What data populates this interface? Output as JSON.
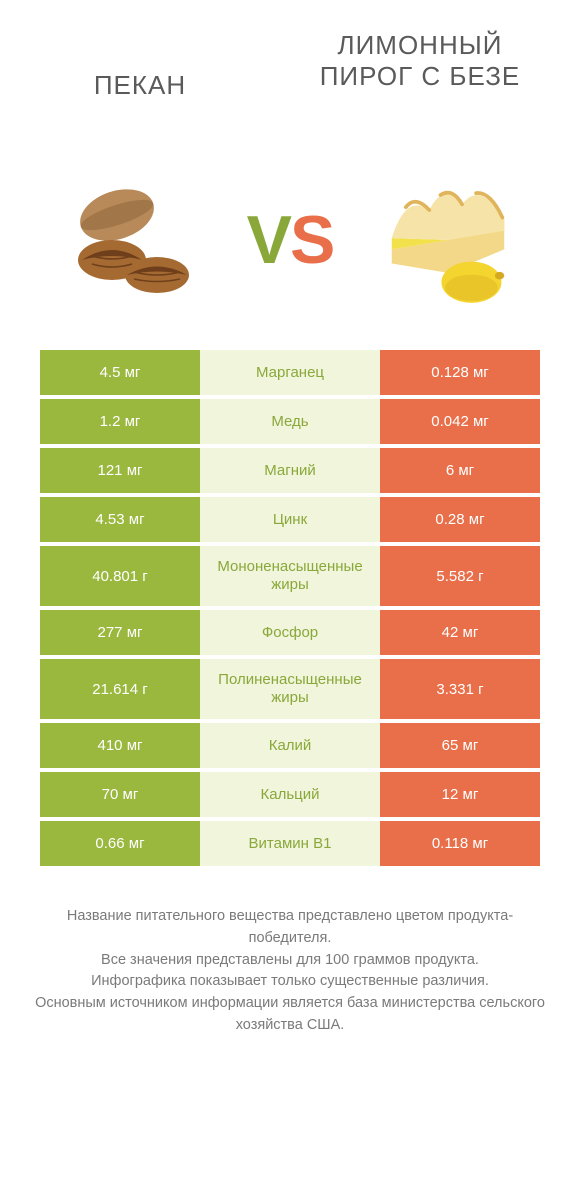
{
  "header": {
    "left_title": "ПЕКАН",
    "right_title": "ЛИМОННЫЙ ПИРОГ С БЕЗЕ"
  },
  "vs": {
    "v": "V",
    "s": "S"
  },
  "colors": {
    "left_bar": "#9ab73e",
    "right_bar": "#e86f4a",
    "mid_bg_winner_left": "#f0f5dc",
    "mid_bg_winner_right": "#fdeae4",
    "mid_text_left": "#8aa83a",
    "mid_text_right": "#e86f4a",
    "footer_text": "#7a7a7a",
    "title_text": "#5a5a5a"
  },
  "comparison": {
    "columns": [
      "left_value",
      "nutrient",
      "right_value"
    ],
    "rows": [
      {
        "left": "4.5 мг",
        "mid": "Марганец",
        "right": "0.128 мг",
        "winner": "left"
      },
      {
        "left": "1.2 мг",
        "mid": "Медь",
        "right": "0.042 мг",
        "winner": "left"
      },
      {
        "left": "121 мг",
        "mid": "Магний",
        "right": "6 мг",
        "winner": "left"
      },
      {
        "left": "4.53 мг",
        "mid": "Цинк",
        "right": "0.28 мг",
        "winner": "left"
      },
      {
        "left": "40.801 г",
        "mid": "Мононенасыщенные жиры",
        "right": "5.582 г",
        "winner": "left"
      },
      {
        "left": "277 мг",
        "mid": "Фосфор",
        "right": "42 мг",
        "winner": "left"
      },
      {
        "left": "21.614 г",
        "mid": "Полиненасыщенные жиры",
        "right": "3.331 г",
        "winner": "left"
      },
      {
        "left": "410 мг",
        "mid": "Калий",
        "right": "65 мг",
        "winner": "left"
      },
      {
        "left": "70 мг",
        "mid": "Кальций",
        "right": "12 мг",
        "winner": "left"
      },
      {
        "left": "0.66 мг",
        "mid": "Витамин B1",
        "right": "0.118 мг",
        "winner": "left"
      }
    ]
  },
  "footer": {
    "line1": "Название питательного вещества представлено цветом продукта-победителя.",
    "line2": "Все значения представлены для 100 граммов продукта.",
    "line3": "Инфографика показывает только существенные различия.",
    "line4": "Основным источником информации является база министерства сельского хозяйства США."
  },
  "images": {
    "pecan": {
      "shell_fill": "#b88a5a",
      "shell_shade": "#8a6238",
      "nut_fill": "#a56a32",
      "nut_shade": "#6e3f1a"
    },
    "pie": {
      "meringue_fill": "#f6e3a8",
      "meringue_top": "#e0b45a",
      "crust": "#f4d88a",
      "filling": "#f2e14a",
      "lemon": "#f4d42e",
      "lemon_shade": "#d4a820"
    }
  }
}
